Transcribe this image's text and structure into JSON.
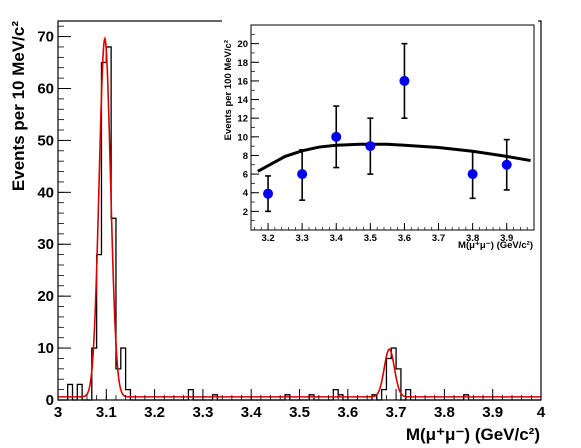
{
  "chart_data": [
    {
      "type": "line",
      "xlabel": "M(μ⁺μ⁻) (GeV/c²)",
      "ylabel": "Events per 10 MeV/c²",
      "xlim": [
        3.0,
        4.0
      ],
      "ylim": [
        0,
        73
      ],
      "x_ticks": [
        "3",
        "3.1",
        "3.2",
        "3.3",
        "3.4",
        "3.5",
        "3.6",
        "3.7",
        "3.8",
        "3.9",
        "4"
      ],
      "y_ticks": [
        "0",
        "10",
        "20",
        "30",
        "40",
        "50",
        "60",
        "70"
      ],
      "grid": false,
      "series": [
        {
          "style": "histogram",
          "color": "#000000",
          "bin_width": 0.01,
          "bin_start": 3.0,
          "values": [
            0,
            0,
            3,
            0,
            3,
            0,
            0,
            10,
            28,
            65,
            68,
            35,
            6,
            10,
            2,
            0,
            0,
            0,
            0,
            0,
            0,
            0,
            0,
            0,
            0,
            0,
            0,
            2,
            0,
            0,
            0,
            0,
            1,
            0,
            0,
            0,
            0,
            0,
            0,
            0,
            0,
            0,
            0,
            0,
            0,
            0,
            0,
            1,
            0,
            0,
            0,
            0,
            1,
            0,
            0,
            0,
            0,
            2,
            1,
            0,
            0,
            0,
            0,
            0,
            0,
            1,
            0,
            2,
            8,
            10,
            6,
            0,
            2,
            0,
            0,
            0,
            0,
            0,
            0,
            0,
            0,
            0,
            0,
            0,
            1,
            0,
            0,
            0,
            0,
            0,
            0,
            0,
            0,
            0,
            0,
            0,
            0,
            0,
            0,
            0
          ]
        },
        {
          "style": "fit-line",
          "color": "#dd0000",
          "background": 0.6,
          "peaks": [
            {
              "mean": 3.097,
              "sigma": 0.0118,
              "amplitude": 69
            },
            {
              "mean": 3.686,
              "sigma": 0.0105,
              "amplitude": 9.2
            }
          ]
        }
      ]
    },
    {
      "type": "scatter",
      "xlabel": "M(μ⁺μ⁻) (GeV/c²)",
      "ylabel": "Events per 100 MeV/c²",
      "xlim": [
        3.15,
        3.98
      ],
      "ylim": [
        0,
        22
      ],
      "x_ticks": [
        "3.2",
        "3.3",
        "3.4",
        "3.5",
        "3.6",
        "3.7",
        "3.8",
        "3.9"
      ],
      "y_ticks": [
        "2",
        "4",
        "6",
        "8",
        "10",
        "12",
        "14",
        "16",
        "18",
        "20"
      ],
      "grid": false,
      "series": [
        {
          "style": "points-with-errors",
          "color": "#0000ee",
          "points": [
            {
              "x": 3.2,
              "y": 3.9,
              "lo": 2.0,
              "hi": 5.8
            },
            {
              "x": 3.3,
              "y": 6.0,
              "lo": 3.2,
              "hi": 8.6
            },
            {
              "x": 3.4,
              "y": 10.0,
              "lo": 6.7,
              "hi": 13.3
            },
            {
              "x": 3.5,
              "y": 9.0,
              "lo": 6.0,
              "hi": 12.0
            },
            {
              "x": 3.6,
              "y": 16.0,
              "lo": 12.0,
              "hi": 20.0
            },
            {
              "x": 3.8,
              "y": 6.0,
              "lo": 3.4,
              "hi": 8.4
            },
            {
              "x": 3.9,
              "y": 7.0,
              "lo": 4.3,
              "hi": 9.7
            }
          ]
        },
        {
          "style": "fit-line",
          "color": "#000000",
          "points": [
            [
              3.17,
              6.3
            ],
            [
              3.25,
              7.9
            ],
            [
              3.3,
              8.5
            ],
            [
              3.35,
              8.9
            ],
            [
              3.4,
              9.1
            ],
            [
              3.47,
              9.2
            ],
            [
              3.55,
              9.2
            ],
            [
              3.6,
              9.1
            ],
            [
              3.7,
              8.85
            ],
            [
              3.8,
              8.45
            ],
            [
              3.9,
              7.9
            ],
            [
              3.97,
              7.45
            ]
          ]
        }
      ]
    }
  ]
}
